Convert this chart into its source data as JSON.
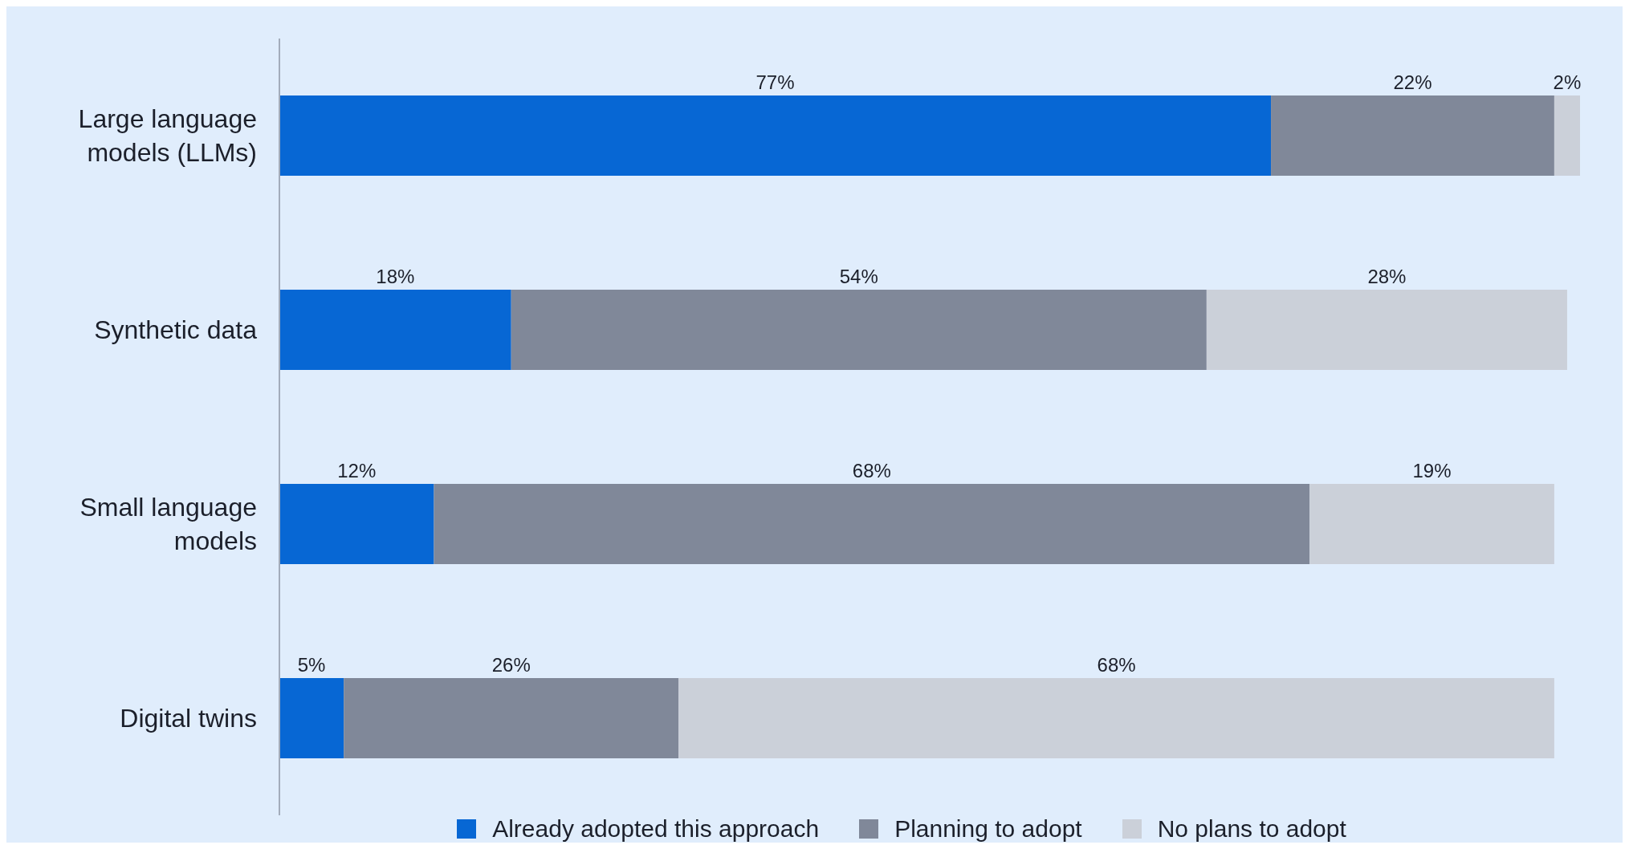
{
  "chart_data": {
    "type": "bar",
    "orientation": "horizontal",
    "stacked": true,
    "legend": "bottom",
    "categories": [
      "Large language models (LLMs)",
      "Synthetic data",
      "Small language models",
      "Digital twins"
    ],
    "series": [
      {
        "name": "Already adopted this approach",
        "color": "#0767d4",
        "values": [
          77,
          18,
          12,
          5
        ],
        "value_labels": [
          "77%",
          "18%",
          "12%",
          "5%"
        ]
      },
      {
        "name": "Planning to adopt",
        "color": "#808899",
        "values": [
          22,
          54,
          68,
          26
        ],
        "value_labels": [
          "22%",
          "54%",
          "68%",
          "26%"
        ]
      },
      {
        "name": "No plans to adopt",
        "color": "#cbd0d9",
        "values": [
          2,
          28,
          19,
          68
        ],
        "value_labels": [
          "2%",
          "28%",
          "19%",
          "68%"
        ]
      }
    ]
  }
}
